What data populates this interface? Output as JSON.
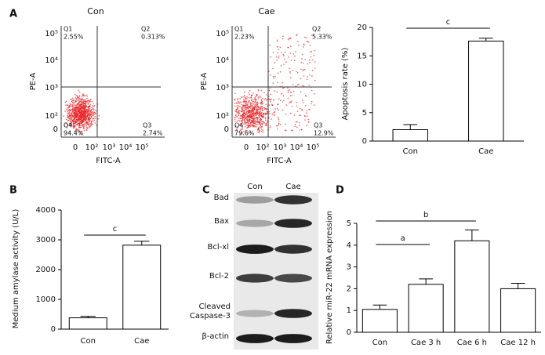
{
  "panel_labels": [
    "A",
    "B",
    "C",
    "D"
  ],
  "flow_ticks": [
    "0",
    "10²",
    "10³",
    "10⁴",
    "10⁵"
  ],
  "flow_plots": [
    {
      "title": "Con",
      "x_label": "FITC-A",
      "y_label": "PE-A",
      "quadrants": [
        {
          "name": "Q1",
          "pct": "2.55%"
        },
        {
          "name": "Q2",
          "pct": "0.313%"
        },
        {
          "name": "Q3",
          "pct": "2.74%"
        },
        {
          "name": "Q4",
          "pct": "94.4%"
        }
      ]
    },
    {
      "title": "Cae",
      "x_label": "FITC-A",
      "y_label": "PE-A",
      "quadrants": [
        {
          "name": "Q1",
          "pct": "2.23%"
        },
        {
          "name": "Q2",
          "pct": "5.33%"
        },
        {
          "name": "Q3",
          "pct": "12.9%"
        },
        {
          "name": "Q4",
          "pct": "79.6%"
        }
      ]
    }
  ],
  "blot": {
    "lanes": [
      "Con",
      "Cae"
    ],
    "proteins": [
      "Bad",
      "Bax",
      "Bcl-xl",
      "Bcl-2",
      "Cleaved Caspase-3",
      "β-actin"
    ]
  },
  "chart_data": [
    {
      "type": "bar",
      "ylabel": "Apoptosis rate (%)",
      "categories": [
        "Con",
        "Cae"
      ],
      "values": [
        2.0,
        17.6
      ],
      "errors": [
        0.9,
        0.5
      ],
      "color": "#ffffff",
      "edgecolor": "#000000",
      "ylim": [
        0,
        20
      ],
      "yticks": [
        0,
        5,
        10,
        15,
        20
      ],
      "annotations": [
        "c"
      ]
    },
    {
      "type": "bar",
      "ylabel": "Medium amylase activity (U/L)",
      "categories": [
        "Con",
        "Cae"
      ],
      "values": [
        380,
        2820
      ],
      "errors": [
        50,
        130
      ],
      "color": "#ffffff",
      "edgecolor": "#000000",
      "ylim": [
        0,
        4000
      ],
      "yticks": [
        0,
        1000,
        2000,
        3000,
        4000
      ],
      "annotations": [
        "c"
      ]
    },
    {
      "type": "bar",
      "ylabel": "Relative miR-22 mRNA expression",
      "categories": [
        "Con",
        "Cae 3 h",
        "Cae  6 h",
        "Cae 12 h"
      ],
      "values": [
        1.05,
        2.2,
        4.2,
        2.0
      ],
      "errors": [
        0.2,
        0.25,
        0.5,
        0.25
      ],
      "color": "#ffffff",
      "edgecolor": "#000000",
      "ylim": [
        0,
        5
      ],
      "yticks": [
        0,
        1,
        2,
        3,
        4,
        5
      ],
      "annotations": [
        "a",
        "b"
      ]
    }
  ]
}
